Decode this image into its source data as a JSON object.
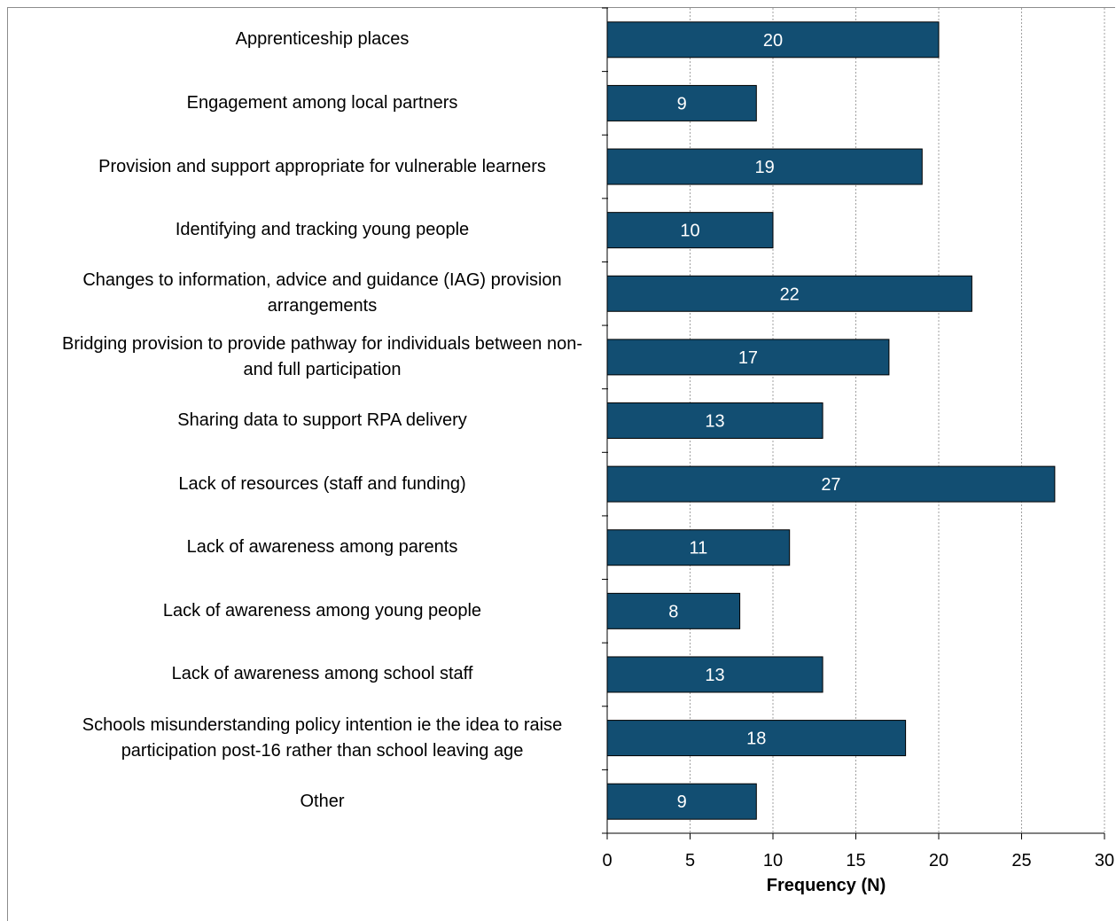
{
  "chart_data": {
    "type": "bar",
    "orientation": "horizontal",
    "categories": [
      "Apprenticeship places",
      "Engagement among local partners",
      "Provision and support appropriate for vulnerable learners",
      "Identifying and tracking young people",
      "Changes to information, advice and guidance (IAG) provision arrangements",
      "Bridging provision to provide pathway for individuals between non- and full participation",
      "Sharing data to support RPA delivery",
      "Lack of resources (staff and funding)",
      "Lack of awareness among parents",
      "Lack of awareness among young people",
      "Lack of awareness among school staff",
      "Schools misunderstanding policy intention ie the idea to raise participation post-16 rather than school leaving age",
      "Other"
    ],
    "values": [
      20,
      9,
      19,
      10,
      22,
      17,
      13,
      27,
      11,
      8,
      13,
      18,
      9
    ],
    "xlabel": "Frequency (N)",
    "ylabel": "",
    "title": "",
    "xlim": [
      0,
      30
    ],
    "xticks": [
      "0",
      "5",
      "10",
      "15",
      "20",
      "25",
      "30"
    ],
    "data_labels": true,
    "grid": "vertical dashed",
    "colors": {
      "bar": "#124e72",
      "label_text": "#ffffff",
      "grid": "#a0a0a0",
      "axis": "#000000"
    }
  }
}
